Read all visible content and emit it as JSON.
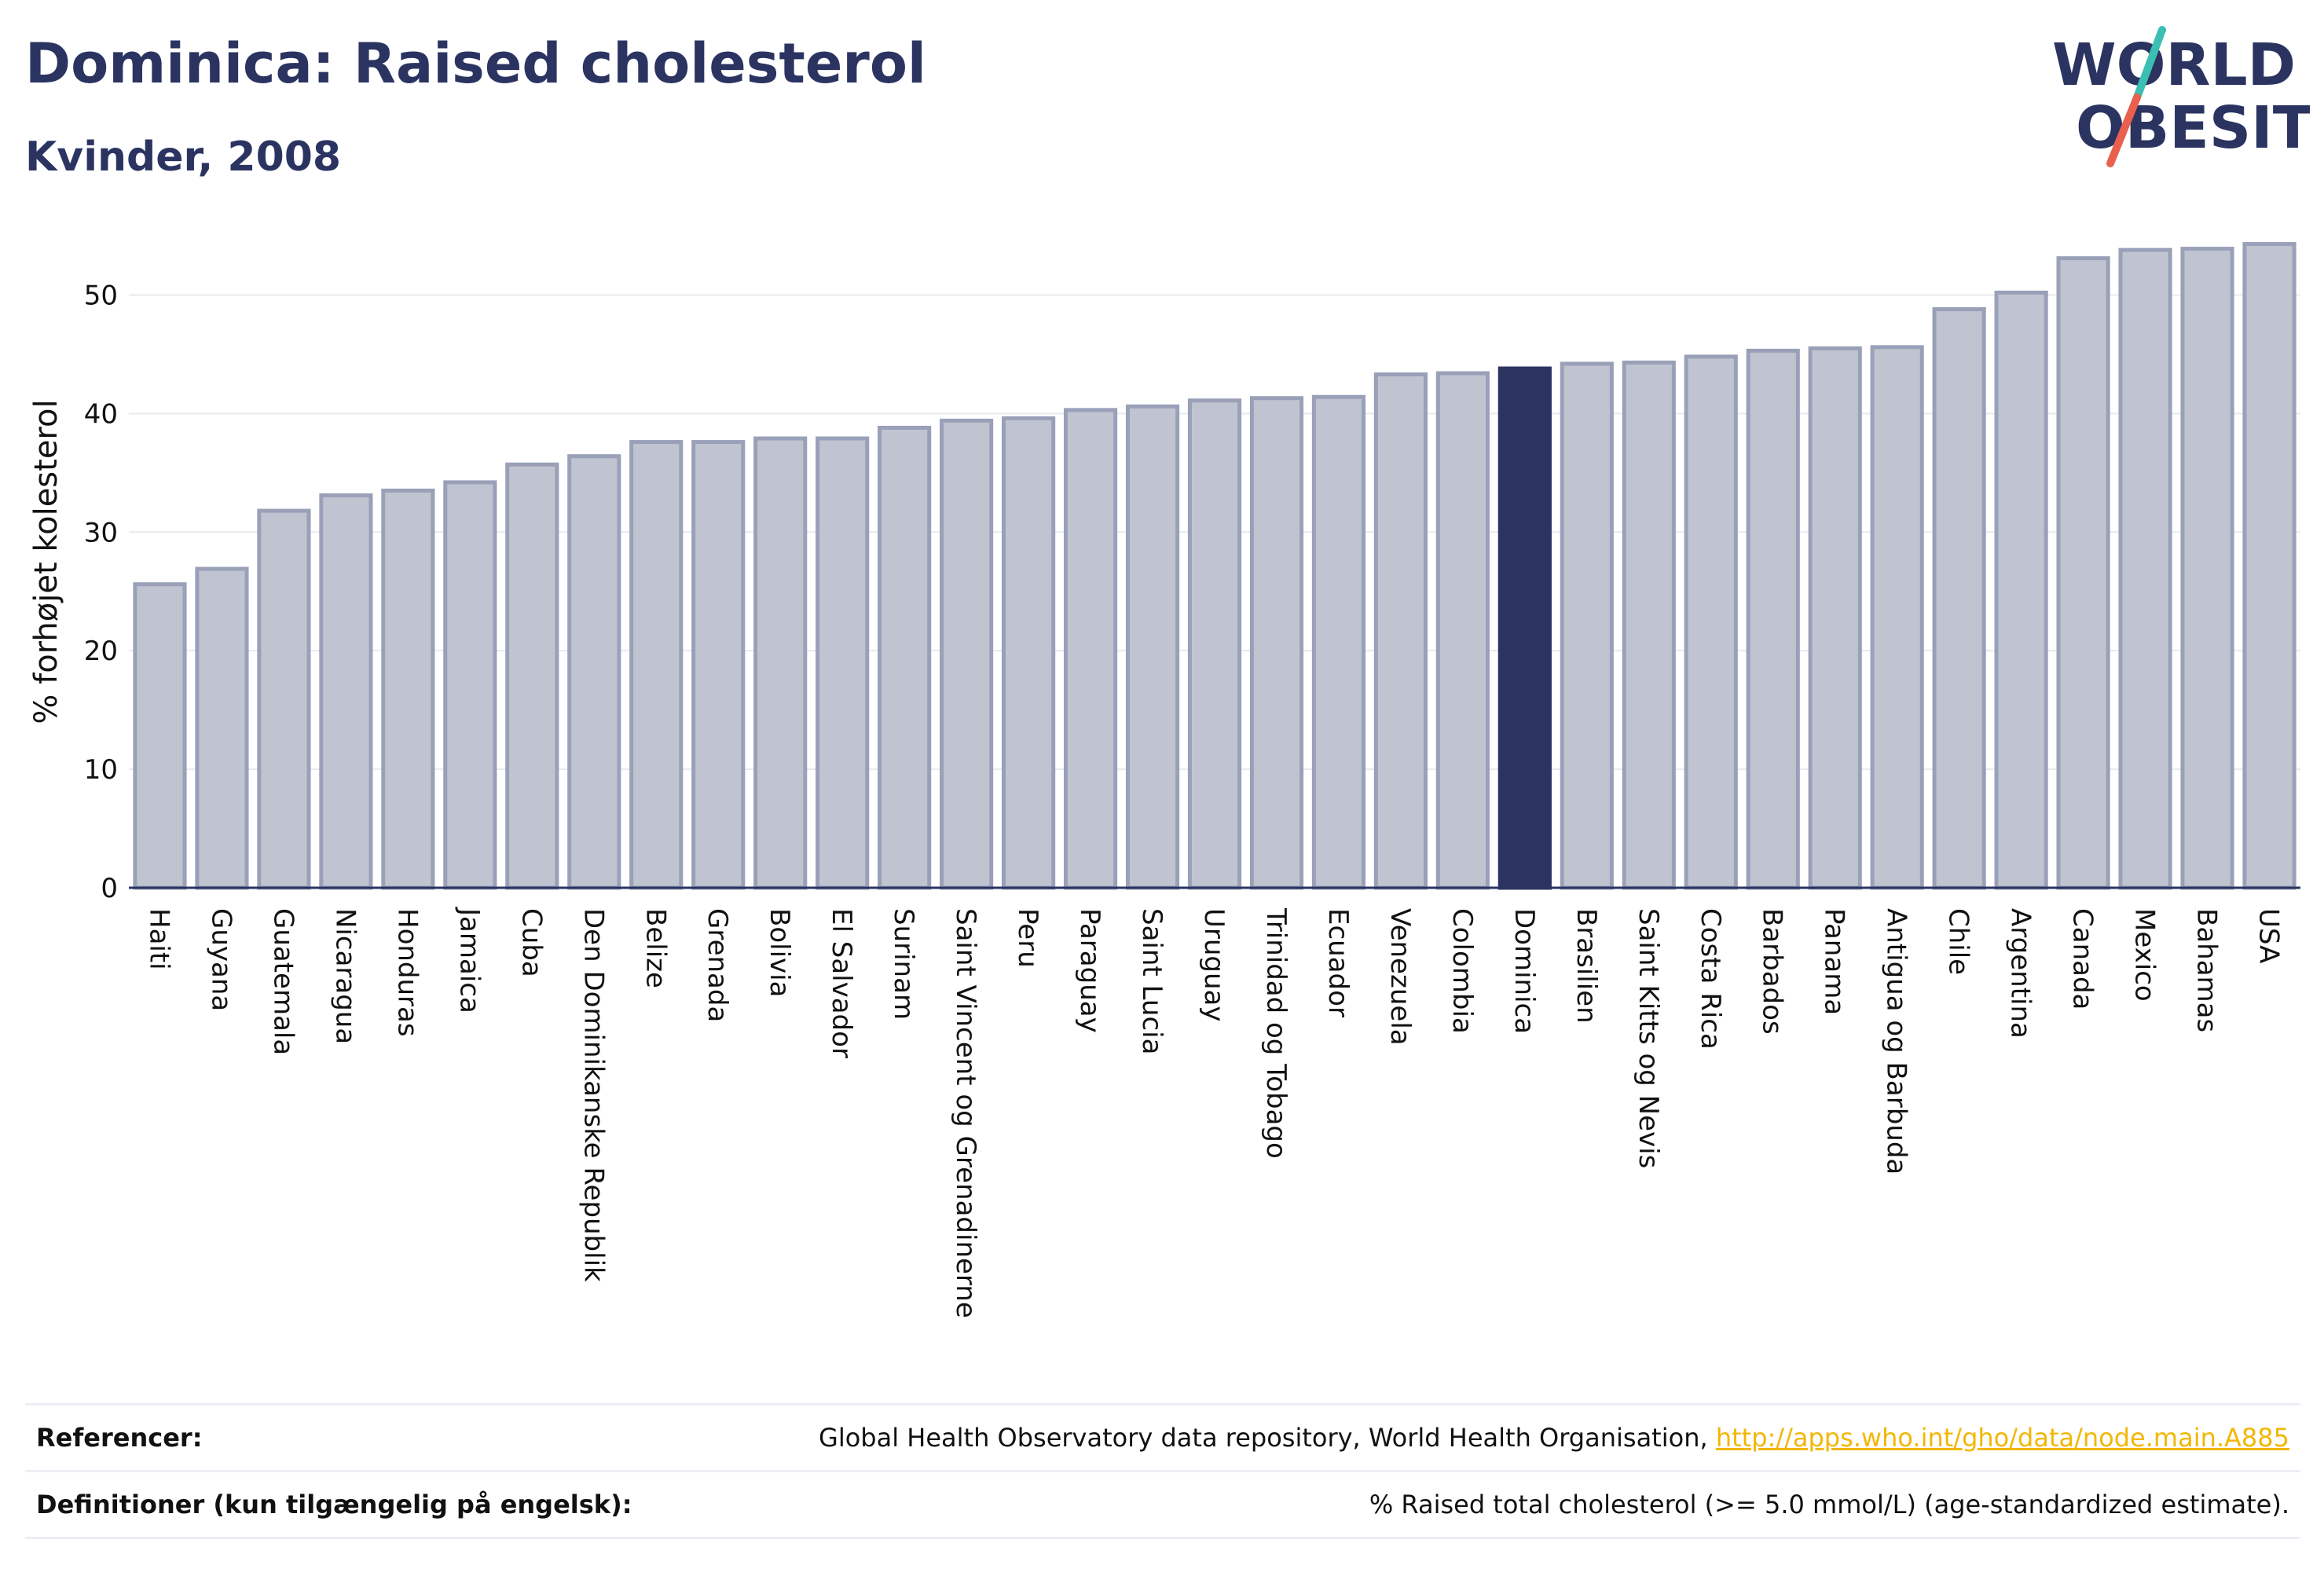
{
  "title": "Dominica: Raised cholesterol",
  "subtitle": "Kvinder, 2008",
  "logo": {
    "line1": "WORLD",
    "line2": "OBESITY",
    "slash_colors": [
      "#3bbfb2",
      "#e9604f"
    ]
  },
  "chart_data": {
    "type": "bar",
    "ylabel": "% forhøjet kolesterol",
    "xlabel": "",
    "ylim": [
      0,
      55
    ],
    "yticks": [
      0,
      10,
      20,
      30,
      40,
      50
    ],
    "grid": true,
    "highlight": "Dominica",
    "colors": {
      "bar": "#c0c4d1",
      "bar_edge": "#99a0b8",
      "highlight": "#2b3461",
      "axis": "#2b3461",
      "grid": "#e8e9ef"
    },
    "categories": [
      "Haiti",
      "Guyana",
      "Guatemala",
      "Nicaragua",
      "Honduras",
      "Jamaica",
      "Cuba",
      "Den Dominikanske Republik",
      "Belize",
      "Grenada",
      "Bolivia",
      "El Salvador",
      "Surinam",
      "Saint Vincent og Grenadinerne",
      "Peru",
      "Paraguay",
      "Saint Lucia",
      "Uruguay",
      "Trinidad og Tobago",
      "Ecuador",
      "Venezuela",
      "Colombia",
      "Dominica",
      "Brasilien",
      "Saint Kitts og Nevis",
      "Costa Rica",
      "Barbados",
      "Panama",
      "Antigua og Barbuda",
      "Chile",
      "Argentina",
      "Canada",
      "Mexico",
      "Bahamas",
      "USA"
    ],
    "values": [
      25.6,
      26.9,
      31.8,
      33.1,
      33.5,
      34.2,
      35.7,
      36.4,
      37.6,
      37.6,
      37.9,
      37.9,
      38.8,
      39.4,
      39.6,
      40.3,
      40.6,
      41.1,
      41.3,
      41.4,
      43.3,
      43.4,
      43.8,
      44.2,
      44.3,
      44.8,
      45.3,
      45.5,
      45.6,
      48.8,
      50.2,
      53.1,
      53.8,
      53.9,
      54.3
    ]
  },
  "footer": {
    "references_label": "Referencer:",
    "references_text": "Global Health Observatory data repository, World Health Organisation, ",
    "references_link": "http://apps.who.int/gho/data/node.main.A885",
    "definitions_label": "Definitioner (kun tilgængelig på engelsk):",
    "definitions_text": "% Raised total cholesterol (>= 5.0 mmol/L) (age-standardized estimate)."
  }
}
